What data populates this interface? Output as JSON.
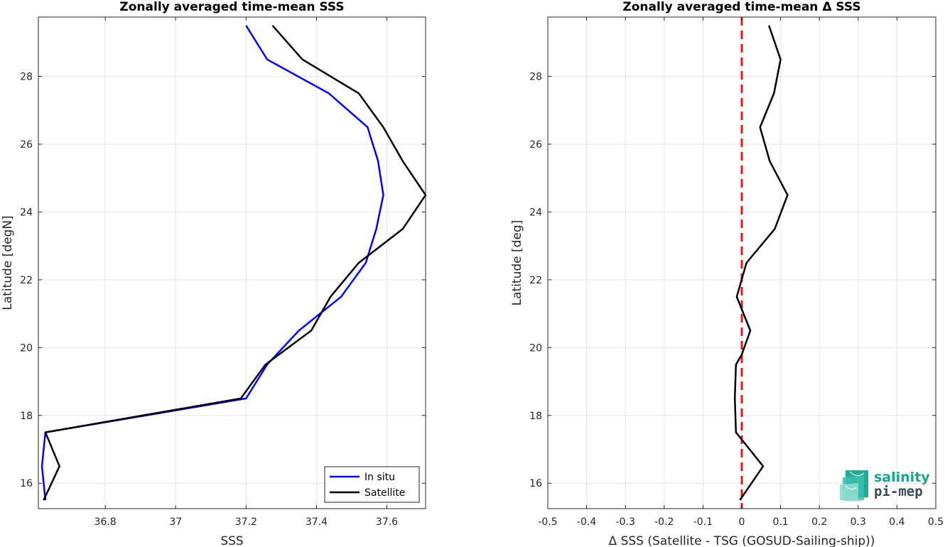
{
  "chart_data": [
    {
      "type": "line",
      "title": "Zonally averaged time-mean SSS",
      "xlabel": "SSS",
      "ylabel": "Latitude [degN]",
      "xlim": [
        36.61,
        37.71
      ],
      "ylim": [
        15.25,
        29.75
      ],
      "xticks": [
        36.8,
        37,
        37.2,
        37.4,
        37.6
      ],
      "xtick_labels": [
        "36.8",
        "37",
        "37.2",
        "37.4",
        "37.6"
      ],
      "yticks": [
        16,
        18,
        20,
        22,
        24,
        26,
        28
      ],
      "ytick_labels": [
        "16",
        "18",
        "20",
        "22",
        "24",
        "26",
        "28"
      ],
      "grid": true,
      "legend_position": "bottom-right",
      "series": [
        {
          "name": "In situ",
          "color": "#0000ff",
          "x": [
            36.63,
            36.62,
            36.63,
            37.2,
            37.26,
            37.35,
            37.47,
            37.54,
            37.57,
            37.59,
            37.575,
            37.545,
            37.435,
            37.26,
            37.2
          ],
          "y": [
            15.5,
            16.5,
            17.5,
            18.5,
            19.5,
            20.5,
            21.5,
            22.5,
            23.5,
            24.5,
            25.5,
            26.5,
            27.5,
            28.5,
            29.5
          ]
        },
        {
          "name": "Satellite",
          "color": "#000000",
          "x": [
            36.625,
            36.67,
            36.63,
            37.185,
            37.255,
            37.385,
            37.44,
            37.52,
            37.645,
            37.71,
            37.645,
            37.59,
            37.52,
            37.36,
            37.275
          ],
          "y": [
            15.5,
            16.5,
            17.5,
            18.5,
            19.5,
            20.5,
            21.5,
            22.5,
            23.5,
            24.5,
            25.5,
            26.5,
            27.5,
            28.5,
            29.5
          ]
        }
      ]
    },
    {
      "type": "line",
      "title": "Zonally averaged time-mean Δ SSS",
      "xlabel": "Δ SSS (Satellite - TSG (GOSUD-Sailing-ship))",
      "ylabel": "Latitude [deg]",
      "xlim": [
        -0.5,
        0.5
      ],
      "ylim": [
        15.25,
        29.75
      ],
      "xticks": [
        -0.5,
        -0.4,
        -0.3,
        -0.2,
        -0.1,
        0,
        0.1,
        0.2,
        0.3,
        0.4,
        0.5
      ],
      "xtick_labels": [
        "-0.5",
        "-0.4",
        "-0.3",
        "-0.2",
        "-0.1",
        "0",
        "0.1",
        "0.2",
        "0.3",
        "0.4",
        "0.5"
      ],
      "yticks": [
        16,
        18,
        20,
        22,
        24,
        26,
        28
      ],
      "ytick_labels": [
        "16",
        "18",
        "20",
        "22",
        "24",
        "26",
        "28"
      ],
      "grid": true,
      "reference_line": {
        "x": 0,
        "color": "#e41a1c",
        "style": "dashed"
      },
      "series": [
        {
          "color": "#000000",
          "x": [
            -0.005,
            0.055,
            -0.015,
            -0.018,
            -0.015,
            0.0,
            0.022,
            -0.013,
            0.012,
            0.085,
            0.118,
            0.072,
            0.047,
            0.083,
            0.1,
            0.07
          ],
          "y": [
            15.5,
            16.5,
            17.5,
            18.5,
            19.5,
            19.8,
            20.5,
            21.5,
            22.5,
            23.5,
            24.5,
            25.5,
            26.5,
            27.5,
            28.5,
            29.5
          ]
        }
      ]
    }
  ],
  "logo": {
    "line1": "salinity",
    "line2": "pi-mep",
    "accent": "#1aa394",
    "dark": "#3a4a5a"
  }
}
